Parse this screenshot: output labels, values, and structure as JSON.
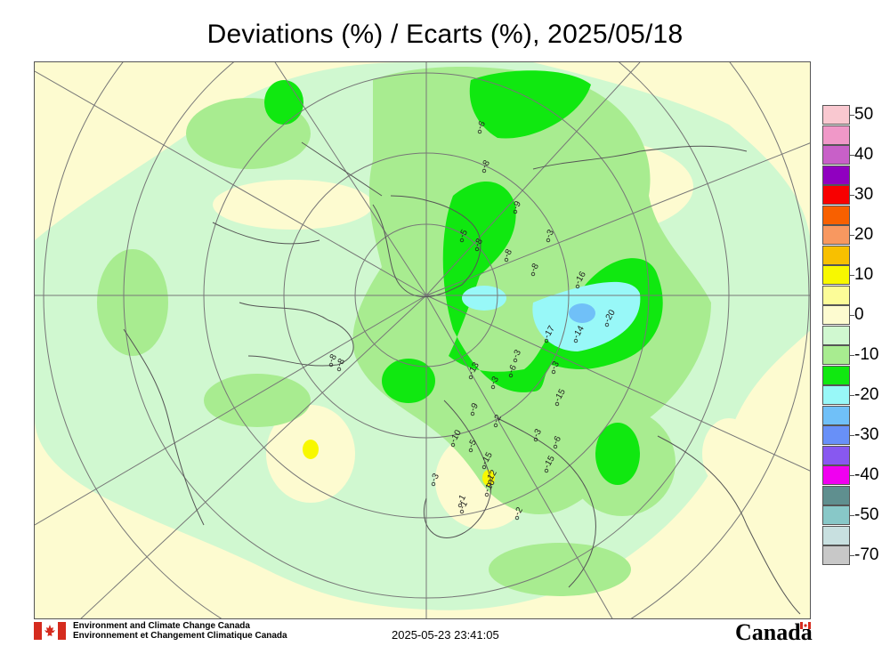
{
  "title": "Deviations (%) / Ecarts (%), 2025/05/18",
  "legend": {
    "items": [
      {
        "label": "50",
        "color": "#f9c8d0"
      },
      {
        "label": "",
        "color": "#f098c8"
      },
      {
        "label": "40",
        "color": "#c860c8"
      },
      {
        "label": "",
        "color": "#9000c0"
      },
      {
        "label": "30",
        "color": "#f80000"
      },
      {
        "label": "",
        "color": "#f86000"
      },
      {
        "label": "20",
        "color": "#f89860"
      },
      {
        "label": "",
        "color": "#f8c000"
      },
      {
        "label": "10",
        "color": "#f8f800"
      },
      {
        "label": "",
        "color": "#fcfc98"
      },
      {
        "label": "0",
        "color": "#fdfbd0"
      },
      {
        "label": "",
        "color": "#d0f8d0"
      },
      {
        "label": "-10",
        "color": "#a8ec90"
      },
      {
        "label": "",
        "color": "#10e810"
      },
      {
        "label": "-20",
        "color": "#98f8f8"
      },
      {
        "label": "",
        "color": "#70c0f8"
      },
      {
        "label": "-30",
        "color": "#6890f8"
      },
      {
        "label": "",
        "color": "#8858f0"
      },
      {
        "label": "-40",
        "color": "#f000f0"
      },
      {
        "label": "",
        "color": "#5f8f8f"
      },
      {
        "label": "-50",
        "color": "#88c8c8"
      },
      {
        "label": "",
        "color": "#c8e0e0"
      },
      {
        "label": "-70",
        "color": "#c8c8c8"
      }
    ]
  },
  "station_values": [
    {
      "label": "-6"
    },
    {
      "label": "-8"
    },
    {
      "label": "-9"
    },
    {
      "label": "-5"
    },
    {
      "label": "-3"
    },
    {
      "label": "-8"
    },
    {
      "label": "-8"
    },
    {
      "label": "-8"
    },
    {
      "label": "-16"
    },
    {
      "label": "-17"
    },
    {
      "label": "-14"
    },
    {
      "label": "-20"
    },
    {
      "label": "-3"
    },
    {
      "label": "-3"
    },
    {
      "label": "-13"
    },
    {
      "label": "-6"
    },
    {
      "label": "-3"
    },
    {
      "label": "-15"
    },
    {
      "label": "-2"
    },
    {
      "label": "-3"
    },
    {
      "label": "-6"
    },
    {
      "label": "-10"
    },
    {
      "label": "-5"
    },
    {
      "label": "-15"
    },
    {
      "label": "-1"
    },
    {
      "label": "-3"
    },
    {
      "label": "-12"
    },
    {
      "label": "-10"
    },
    {
      "label": "-1"
    },
    {
      "label": "-15"
    },
    {
      "label": "-2"
    },
    {
      "label": "-8"
    },
    {
      "label": "-8"
    },
    {
      "label": "-9"
    }
  ],
  "footer": {
    "org_en": "Environment and Climate Change Canada",
    "org_fr": "Environnement et Changement Climatique Canada",
    "timestamp": "2025-05-23 23:41:05",
    "wordmark": "Canada"
  },
  "icons": {
    "flag": "canada-flag-icon"
  }
}
